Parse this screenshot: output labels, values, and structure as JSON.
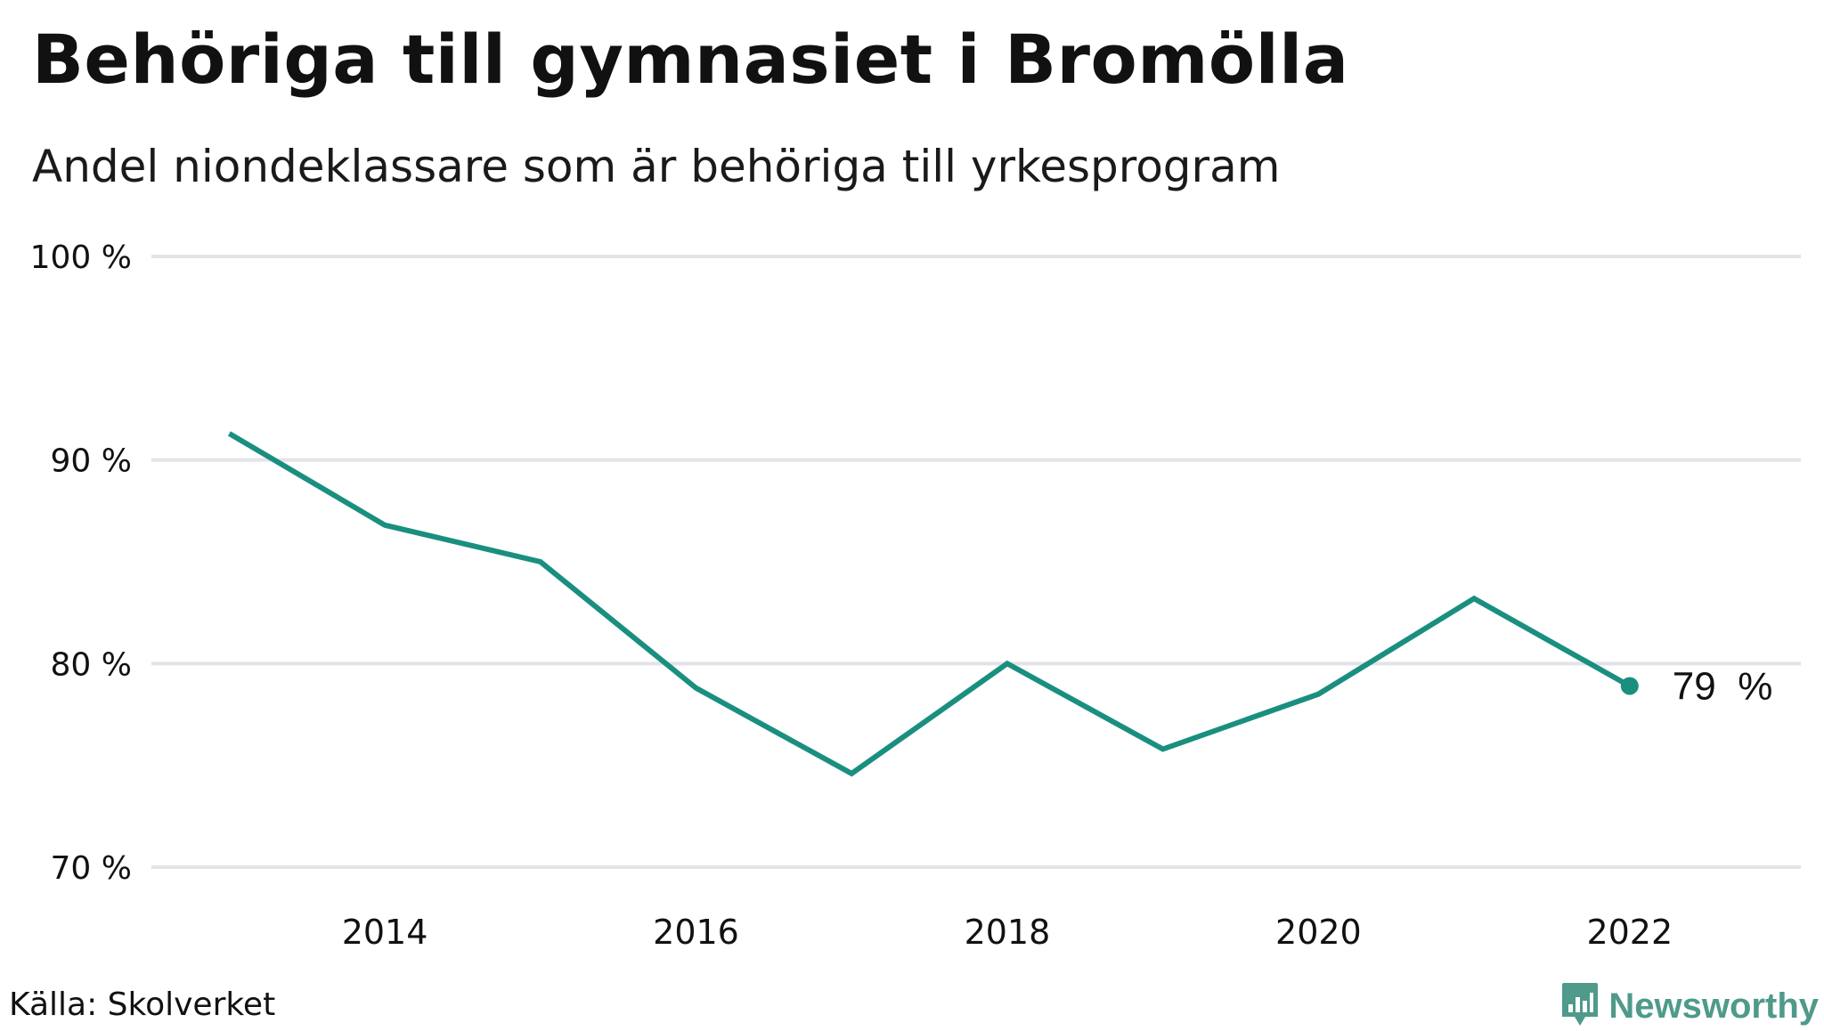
{
  "title": "Behöriga till gymnasiet i Bromölla",
  "subtitle": "Andel niondeklassare som är behöriga till yrkesprogram",
  "source": "Källa: Skolverket",
  "brand": {
    "name": "Newsworthy",
    "icon": "newsworthy-logo-icon",
    "color": "#4f9a8a"
  },
  "colors": {
    "line": "#1a8f80",
    "grid": "#e3e3e8",
    "text": "#111111"
  },
  "chart_data": {
    "type": "line",
    "title": "Behöriga till gymnasiet i Bromölla",
    "subtitle": "Andel niondeklassare som är behöriga till yrkesprogram",
    "xlabel": "",
    "ylabel": "",
    "x": [
      2013,
      2014,
      2015,
      2016,
      2017,
      2018,
      2019,
      2020,
      2021,
      2022
    ],
    "series": [
      {
        "values": [
          91.3,
          86.8,
          85.0,
          78.8,
          74.6,
          80.0,
          75.8,
          78.5,
          83.2,
          78.9
        ]
      }
    ],
    "xlim": [
      2012.5,
      2023.1
    ],
    "ylim": [
      70,
      100
    ],
    "x_ticks": [
      2014,
      2016,
      2018,
      2020,
      2022
    ],
    "x_tick_labels": [
      "2014",
      "2016",
      "2018",
      "2020",
      "2022"
    ],
    "y_ticks": [
      70,
      80,
      90,
      100
    ],
    "y_tick_labels": [
      "70 %",
      "80 %",
      "90 %",
      "100 %"
    ],
    "end_label": "79  %",
    "grid": true,
    "legend": "none"
  }
}
